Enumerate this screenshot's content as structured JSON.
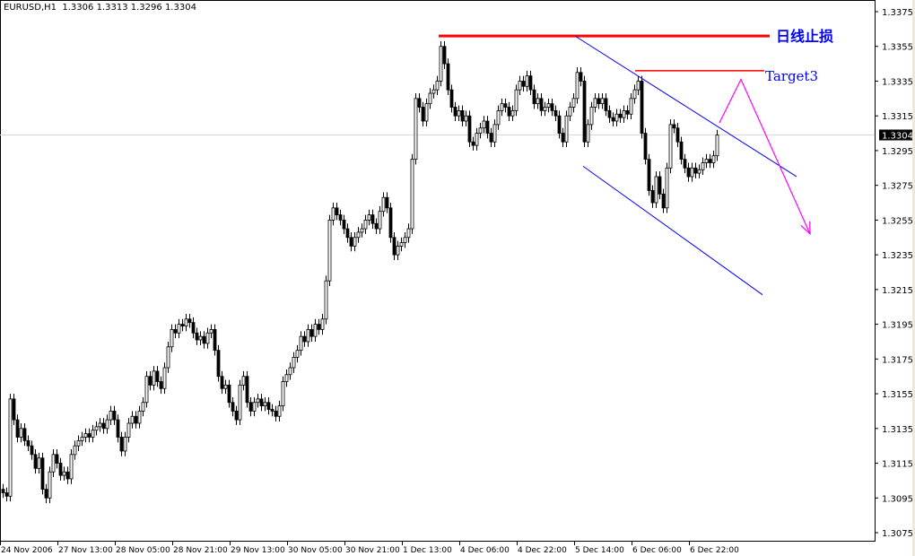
{
  "header": {
    "symbol": "EURUSD,H1",
    "open": "1.3306",
    "high": "1.3313",
    "low": "1.3296",
    "close": "1.3304"
  },
  "colors": {
    "bull_body": "#ffffff",
    "bear_body": "#000000",
    "candle_outline": "#000000",
    "stop_line": "#ff0000",
    "channel": "#0000ff",
    "forecast": "#ff00ff",
    "label_text": "#0000ff"
  },
  "chart_data": {
    "type": "candlestick",
    "title": "",
    "ylim": [
      1.3075,
      1.3375
    ],
    "yticks": [
      "1.3375",
      "1.3355",
      "1.3335",
      "1.3315",
      "1.3295",
      "1.3275",
      "1.3255",
      "1.3235",
      "1.3215",
      "1.3195",
      "1.3175",
      "1.3155",
      "1.3135",
      "1.3115",
      "1.3095",
      "1.3075"
    ],
    "xtick_labels": [
      "24 Nov 2006",
      "27 Nov 13:00",
      "28 Nov 05:00",
      "28 Nov 21:00",
      "29 Nov 13:00",
      "30 Nov 05:00",
      "30 Nov 21:00",
      "1 Dec 13:00",
      "4 Dec 06:00",
      "4 Dec 22:00",
      "5 Dec 14:00",
      "6 Dec 06:00",
      "6 Dec 22:00"
    ],
    "xtick_every_bars": 16,
    "current_price": "1.3304",
    "grid": false,
    "close": [
      1.3098,
      1.3096,
      1.3152,
      1.314,
      1.313,
      1.3135,
      1.3128,
      1.3125,
      1.312,
      1.3112,
      1.3118,
      1.31,
      1.3095,
      1.311,
      1.312,
      1.3115,
      1.3108,
      1.311,
      1.3106,
      1.312,
      1.3125,
      1.3128,
      1.313,
      1.3132,
      1.313,
      1.3134,
      1.3136,
      1.3138,
      1.3135,
      1.314,
      1.3145,
      1.314,
      1.313,
      1.3122,
      1.313,
      1.3138,
      1.3142,
      1.3138,
      1.3145,
      1.315,
      1.3165,
      1.316,
      1.3168,
      1.3162,
      1.3158,
      1.317,
      1.3182,
      1.3192,
      1.319,
      1.3195,
      1.3194,
      1.3198,
      1.3196,
      1.319,
      1.3186,
      1.3188,
      1.3184,
      1.319,
      1.3192,
      1.318,
      1.3165,
      1.3158,
      1.316,
      1.315,
      1.3145,
      1.314,
      1.316,
      1.3165,
      1.315,
      1.3145,
      1.315,
      1.3152,
      1.3148,
      1.315,
      1.3146,
      1.3145,
      1.3142,
      1.3148,
      1.3162,
      1.3166,
      1.317,
      1.3176,
      1.318,
      1.3188,
      1.3185,
      1.3192,
      1.3188,
      1.3195,
      1.3192,
      1.3198,
      1.322,
      1.3255,
      1.3262,
      1.3258,
      1.3255,
      1.325,
      1.3245,
      1.324,
      1.3245,
      1.3248,
      1.325,
      1.3255,
      1.3258,
      1.3253,
      1.325,
      1.326,
      1.3268,
      1.3262,
      1.3245,
      1.3235,
      1.324,
      1.3242,
      1.3245,
      1.325,
      1.329,
      1.3325,
      1.332,
      1.3312,
      1.3322,
      1.3328,
      1.333,
      1.3335,
      1.3355,
      1.3345,
      1.333,
      1.332,
      1.3315,
      1.3318,
      1.3312,
      1.3315,
      1.33,
      1.3298,
      1.3305,
      1.3308,
      1.3312,
      1.3305,
      1.33,
      1.331,
      1.3318,
      1.3322,
      1.332,
      1.3315,
      1.3318,
      1.333,
      1.3335,
      1.3332,
      1.3338,
      1.333,
      1.3322,
      1.3325,
      1.3318,
      1.332,
      1.3322,
      1.3318,
      1.3315,
      1.3305,
      1.33,
      1.3315,
      1.332,
      1.3325,
      1.334,
      1.3335,
      1.33,
      1.331,
      1.332,
      1.3325,
      1.3322,
      1.3325,
      1.3318,
      1.3314,
      1.3312,
      1.3316,
      1.3314,
      1.3318,
      1.3316,
      1.3325,
      1.333,
      1.3335,
      1.3305,
      1.329,
      1.3272,
      1.3265,
      1.328,
      1.327,
      1.3262,
      1.3285,
      1.331,
      1.3308,
      1.33,
      1.329,
      1.3285,
      1.328,
      1.3285,
      1.3282,
      1.3284,
      1.3288,
      1.329,
      1.3288,
      1.3292,
      1.3304
    ],
    "annotations": {
      "stop_line": {
        "label": "日线止损",
        "price": 1.3361,
        "from_bar": 121.5,
        "to_bar": 213.75
      },
      "target_line": {
        "label": "Target3",
        "price": 1.3341,
        "from_bar": 176.25,
        "to_bar": 212.25
      },
      "channel_upper": [
        [
          159.5,
          1.3361
        ],
        [
          221.25,
          1.328
        ]
      ],
      "channel_lower": [
        [
          161.75,
          1.3286
        ],
        [
          211.75,
          1.3212
        ]
      ],
      "forecast_path": [
        [
          199.75,
          1.3311
        ],
        [
          205.75,
          1.3336
        ],
        [
          225,
          1.3247
        ]
      ]
    }
  }
}
